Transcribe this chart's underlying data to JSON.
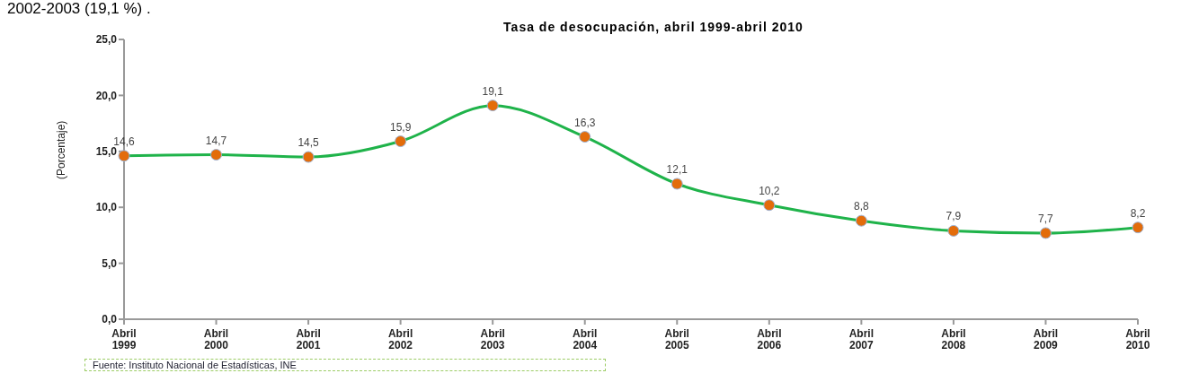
{
  "chart_data": {
    "type": "line",
    "title": "Tasa de desocupación,  abril 1999-abril 2010",
    "ylabel": "(Porcentaje)",
    "annotations": [
      "2002-2003 (19,1 %) .",
      "Fuente: Instituto Nacional de Estadísticas, INE"
    ],
    "categories": [
      "Abril 1999",
      "Abril 2000",
      "Abril 2001",
      "Abril 2002",
      "Abril 2003",
      "Abril 2004",
      "Abril 2005",
      "Abril 2006",
      "Abril 2007",
      "Abril 2008",
      "Abril 2009",
      "Abril 2010"
    ],
    "series": [
      {
        "color": "#1fb34a",
        "values": [
          14.6,
          14.7,
          14.5,
          15.9,
          19.1,
          16.3,
          12.1,
          10.2,
          8.8,
          7.9,
          7.7,
          8.2
        ],
        "value_labels": [
          "14,6",
          "14,7",
          "14,5",
          "15,9",
          "19,1",
          "16,3",
          "12,1",
          "10,2",
          "8,8",
          "7,9",
          "7,7",
          "8,2"
        ]
      }
    ],
    "ylim": [
      0,
      25
    ],
    "yticks": [
      {
        "value": 0,
        "label": "0,0"
      },
      {
        "value": 5,
        "label": "5,0"
      },
      {
        "value": 10,
        "label": "10,0"
      },
      {
        "value": 15,
        "label": "15,0"
      },
      {
        "value": 20,
        "label": "20,0"
      },
      {
        "value": 25,
        "label": "25,0"
      }
    ],
    "marker": "circle",
    "grid": false,
    "legend": false
  }
}
